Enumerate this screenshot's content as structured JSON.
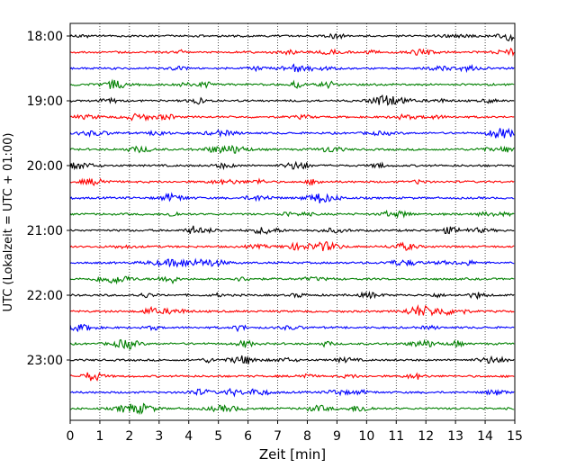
{
  "chart_data": {
    "type": "line",
    "title": "",
    "xlabel": "Zeit  [min]",
    "ylabel": "UTC (Lokalzeit = UTC + 01:00)",
    "xlim": [
      0,
      15
    ],
    "xticks": [
      0,
      1,
      2,
      3,
      4,
      5,
      6,
      7,
      8,
      9,
      10,
      11,
      12,
      13,
      14,
      15
    ],
    "yticks": [
      "18:00",
      "19:00",
      "20:00",
      "21:00",
      "22:00",
      "23:00"
    ],
    "grid": "vertical dotted lines at each minute",
    "series_colors": [
      "#000000",
      "#ff0000",
      "#0000ff",
      "#008000"
    ],
    "traces": [
      {
        "start": "18:00",
        "color": "#000000"
      },
      {
        "start": "18:15",
        "color": "#ff0000"
      },
      {
        "start": "18:30",
        "color": "#0000ff"
      },
      {
        "start": "18:45",
        "color": "#008000"
      },
      {
        "start": "19:00",
        "color": "#000000"
      },
      {
        "start": "19:15",
        "color": "#ff0000"
      },
      {
        "start": "19:30",
        "color": "#0000ff"
      },
      {
        "start": "19:45",
        "color": "#008000"
      },
      {
        "start": "20:00",
        "color": "#000000"
      },
      {
        "start": "20:15",
        "color": "#ff0000"
      },
      {
        "start": "20:30",
        "color": "#0000ff"
      },
      {
        "start": "20:45",
        "color": "#008000"
      },
      {
        "start": "21:00",
        "color": "#000000"
      },
      {
        "start": "21:15",
        "color": "#ff0000"
      },
      {
        "start": "21:30",
        "color": "#0000ff"
      },
      {
        "start": "21:45",
        "color": "#008000"
      },
      {
        "start": "22:00",
        "color": "#000000"
      },
      {
        "start": "22:15",
        "color": "#ff0000"
      },
      {
        "start": "22:30",
        "color": "#0000ff"
      },
      {
        "start": "22:45",
        "color": "#008000"
      },
      {
        "start": "23:00",
        "color": "#000000"
      },
      {
        "start": "23:15",
        "color": "#ff0000"
      },
      {
        "start": "23:30",
        "color": "#0000ff"
      },
      {
        "start": "23:45",
        "color": "#008000"
      }
    ]
  }
}
